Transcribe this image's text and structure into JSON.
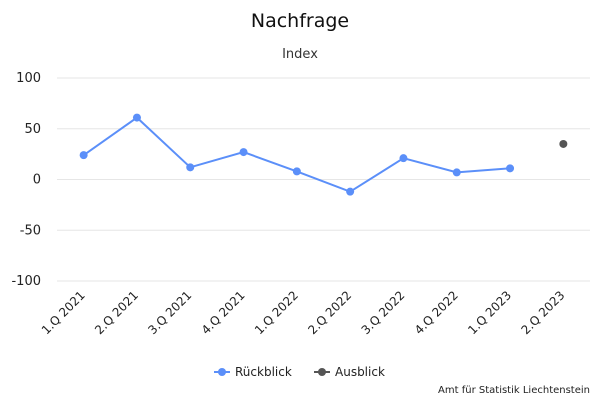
{
  "chart_data": {
    "type": "line",
    "title": "Nachfrage",
    "subtitle": "Index",
    "xlabel": "",
    "ylabel": "",
    "categories": [
      "1.Q 2021",
      "2.Q 2021",
      "3.Q 2021",
      "4.Q 2021",
      "1.Q 2022",
      "2.Q 2022",
      "3.Q 2022",
      "4.Q 2022",
      "1.Q 2023",
      "2.Q 2023"
    ],
    "ylim": [
      -100,
      100
    ],
    "yticks": [
      100,
      50,
      0,
      -50,
      -100
    ],
    "grid": true,
    "legend_position": "bottom",
    "series": [
      {
        "name": "Rückblick",
        "color": "#5b8ff9",
        "values": [
          24,
          61,
          12,
          27,
          8,
          -12,
          21,
          7,
          11,
          null
        ]
      },
      {
        "name": "Ausblick",
        "color": "#555555",
        "values": [
          null,
          null,
          null,
          null,
          null,
          null,
          null,
          null,
          null,
          35
        ]
      }
    ],
    "credit": "Amt für Statistik Liechtenstein"
  }
}
